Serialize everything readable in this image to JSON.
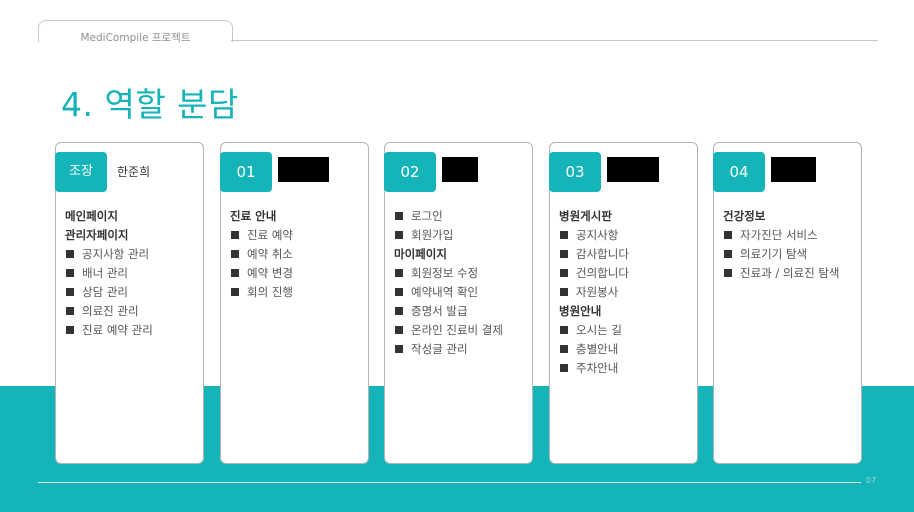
{
  "header": {
    "project_label": "MediCompile 프로젝트"
  },
  "page_title": "4. 역할 분담",
  "page_number": "07",
  "cards": [
    {
      "badge": "조장",
      "person": "한준희",
      "redacted": false,
      "lines": [
        {
          "type": "heading",
          "text": "메인페이지"
        },
        {
          "type": "heading",
          "text": "관리자페이지"
        },
        {
          "type": "item",
          "text": "공지사항 관리"
        },
        {
          "type": "item",
          "text": "배너 관리"
        },
        {
          "type": "item",
          "text": "상담 관리"
        },
        {
          "type": "item",
          "text": "의료진 관리"
        },
        {
          "type": "item",
          "text": "진료 예약 관리"
        }
      ]
    },
    {
      "badge": "01",
      "person": "",
      "redacted": true,
      "lines": [
        {
          "type": "heading",
          "text": "진료 안내"
        },
        {
          "type": "item",
          "text": "진료 예약"
        },
        {
          "type": "item",
          "text": "예약 취소"
        },
        {
          "type": "item",
          "text": "예약 변경"
        },
        {
          "type": "item",
          "text": "회의 진행"
        }
      ]
    },
    {
      "badge": "02",
      "person": "",
      "redacted": true,
      "lines": [
        {
          "type": "item",
          "text": "로그인"
        },
        {
          "type": "item",
          "text": "회원가입"
        },
        {
          "type": "heading",
          "text": "마이페이지"
        },
        {
          "type": "item",
          "text": "회원정보 수정"
        },
        {
          "type": "item",
          "text": "예약내역 확인"
        },
        {
          "type": "item",
          "text": "증명서 발급"
        },
        {
          "type": "item",
          "text": "온라인 진료비 결제"
        },
        {
          "type": "item",
          "text": "작성글 관리"
        }
      ]
    },
    {
      "badge": "03",
      "person": "",
      "redacted": true,
      "lines": [
        {
          "type": "heading",
          "text": "병원게시판"
        },
        {
          "type": "item",
          "text": "공지사항"
        },
        {
          "type": "item",
          "text": "감사합니다"
        },
        {
          "type": "item",
          "text": "건의합니다"
        },
        {
          "type": "item",
          "text": "자원봉사"
        },
        {
          "type": "heading",
          "text": "병원안내"
        },
        {
          "type": "item",
          "text": "오시는 길"
        },
        {
          "type": "item",
          "text": "층별안내"
        },
        {
          "type": "item",
          "text": "주차안내"
        }
      ]
    },
    {
      "badge": "04",
      "person": "",
      "redacted": true,
      "lines": [
        {
          "type": "heading",
          "text": "건강정보"
        },
        {
          "type": "item",
          "text": "자가진단 서비스"
        },
        {
          "type": "item",
          "text": "의료기기 탐색"
        },
        {
          "type": "item",
          "text": "진료과 / 의료진 탐색"
        }
      ]
    }
  ]
}
